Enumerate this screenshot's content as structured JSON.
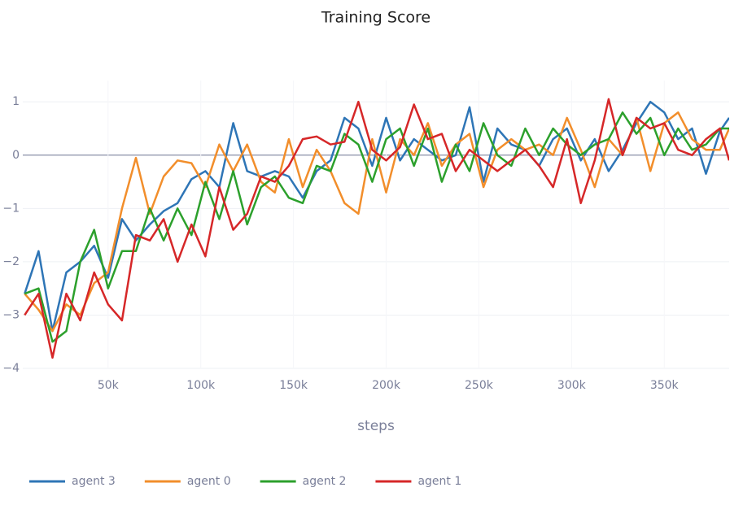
{
  "chart_data": {
    "type": "line",
    "title": "Training Score",
    "x_label": "steps",
    "x": [
      5000,
      12500,
      20000,
      27500,
      35000,
      42500,
      50000,
      57500,
      65000,
      72500,
      80000,
      87500,
      95000,
      102500,
      110000,
      117500,
      125000,
      132500,
      140000,
      147500,
      155000,
      162500,
      170000,
      177500,
      185000,
      192500,
      200000,
      207500,
      215000,
      222500,
      230000,
      237500,
      245000,
      252500,
      260000,
      267500,
      275000,
      282500,
      290000,
      297500,
      305000,
      312500,
      320000,
      327500,
      335000,
      342500,
      350000,
      357500,
      365000,
      372500,
      380000,
      385000
    ],
    "series": [
      {
        "name": "agent 3",
        "color": "#2e75b6",
        "values": [
          -2.6,
          -1.8,
          -3.3,
          -2.2,
          -2.0,
          -1.7,
          -2.3,
          -1.2,
          -1.6,
          -1.3,
          -1.05,
          -0.9,
          -0.45,
          -0.3,
          -0.6,
          0.6,
          -0.3,
          -0.4,
          -0.3,
          -0.4,
          -0.8,
          -0.3,
          -0.1,
          0.7,
          0.5,
          -0.2,
          0.7,
          -0.1,
          0.3,
          0.1,
          -0.1,
          0.0,
          0.9,
          -0.5,
          0.5,
          0.2,
          0.1,
          -0.2,
          0.3,
          0.5,
          -0.1,
          0.3,
          -0.3,
          0.1,
          0.6,
          1.0,
          0.8,
          0.3,
          0.5,
          -0.35,
          0.45,
          0.7
        ]
      },
      {
        "name": "agent 0",
        "color": "#f28e2b",
        "values": [
          -2.6,
          -2.9,
          -3.3,
          -2.8,
          -3.0,
          -2.4,
          -2.2,
          -1.0,
          -0.05,
          -1.1,
          -0.4,
          -0.1,
          -0.15,
          -0.6,
          0.2,
          -0.3,
          0.2,
          -0.5,
          -0.7,
          0.3,
          -0.6,
          0.1,
          -0.3,
          -0.9,
          -1.1,
          0.3,
          -0.7,
          0.3,
          0.0,
          0.6,
          -0.2,
          0.2,
          0.4,
          -0.6,
          0.1,
          0.3,
          0.1,
          0.2,
          0.0,
          0.7,
          0.1,
          -0.6,
          0.3,
          0.0,
          0.7,
          -0.3,
          0.6,
          0.8,
          0.3,
          0.1,
          0.1,
          0.5
        ]
      },
      {
        "name": "agent 2",
        "color": "#2ca02c",
        "values": [
          -2.6,
          -2.5,
          -3.5,
          -3.3,
          -2.0,
          -1.4,
          -2.5,
          -1.8,
          -1.8,
          -1.0,
          -1.6,
          -1.0,
          -1.5,
          -0.5,
          -1.2,
          -0.3,
          -1.3,
          -0.6,
          -0.4,
          -0.8,
          -0.9,
          -0.2,
          -0.3,
          0.4,
          0.2,
          -0.5,
          0.3,
          0.5,
          -0.2,
          0.5,
          -0.5,
          0.2,
          -0.3,
          0.6,
          0.0,
          -0.2,
          0.5,
          0.0,
          0.5,
          0.2,
          0.0,
          0.2,
          0.3,
          0.8,
          0.4,
          0.7,
          0.0,
          0.5,
          0.1,
          0.2,
          0.5,
          0.5
        ]
      },
      {
        "name": "agent 1",
        "color": "#d62728",
        "values": [
          -3.0,
          -2.6,
          -3.8,
          -2.6,
          -3.1,
          -2.2,
          -2.8,
          -3.1,
          -1.5,
          -1.6,
          -1.2,
          -2.0,
          -1.3,
          -1.9,
          -0.6,
          -1.4,
          -1.1,
          -0.4,
          -0.5,
          -0.2,
          0.3,
          0.35,
          0.2,
          0.25,
          1.0,
          0.1,
          -0.1,
          0.15,
          0.95,
          0.3,
          0.4,
          -0.3,
          0.1,
          -0.1,
          -0.3,
          -0.1,
          0.1,
          -0.2,
          -0.6,
          0.3,
          -0.9,
          -0.1,
          1.05,
          0.0,
          0.7,
          0.5,
          0.6,
          0.1,
          0.0,
          0.3,
          0.5,
          -0.1
        ]
      }
    ],
    "xlim": [
      4000,
      385000
    ],
    "xticks": [
      {
        "value": 50000,
        "label": "50k"
      },
      {
        "value": 100000,
        "label": "100k"
      },
      {
        "value": 150000,
        "label": "150k"
      },
      {
        "value": 200000,
        "label": "200k"
      },
      {
        "value": 250000,
        "label": "250k"
      },
      {
        "value": 300000,
        "label": "300k"
      },
      {
        "value": 350000,
        "label": "350k"
      }
    ],
    "ylim": [
      -4,
      1.4
    ],
    "yticks": [
      {
        "value": -4,
        "label": "−4"
      },
      {
        "value": -3,
        "label": "−3"
      },
      {
        "value": -2,
        "label": "−2"
      },
      {
        "value": -1,
        "label": "−1"
      },
      0,
      1
    ],
    "grid": true,
    "legend": "bottom-left"
  }
}
